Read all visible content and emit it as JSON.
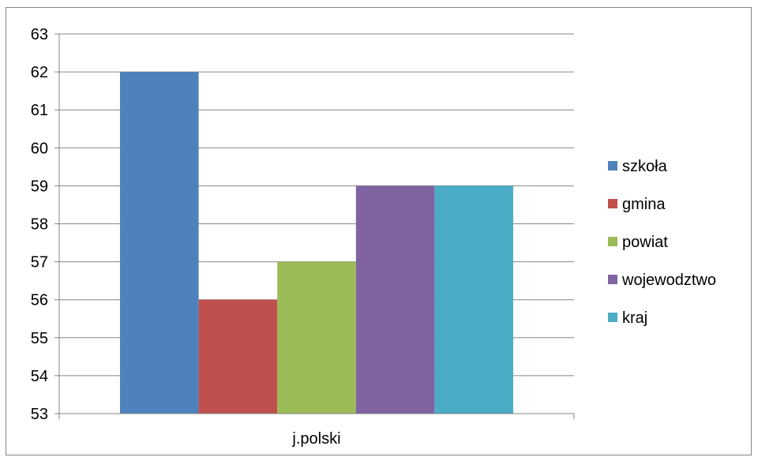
{
  "chart_data": {
    "type": "bar",
    "categories": [
      "j.polski"
    ],
    "series": [
      {
        "name": "szkoła",
        "values": [
          62
        ],
        "color": "#4F81BD"
      },
      {
        "name": "gmina",
        "values": [
          56
        ],
        "color": "#C0504D"
      },
      {
        "name": "powiat",
        "values": [
          57
        ],
        "color": "#9BBB59"
      },
      {
        "name": "wojewodztwo",
        "values": [
          59
        ],
        "color": "#8064A2"
      },
      {
        "name": "kraj",
        "values": [
          59
        ],
        "color": "#4BACC6"
      }
    ],
    "ylim": [
      53,
      63
    ],
    "yticks": [
      53,
      54,
      55,
      56,
      57,
      58,
      59,
      60,
      61,
      62,
      63
    ],
    "grid": true,
    "legend": "right",
    "title": "",
    "xlabel": "",
    "ylabel": ""
  }
}
